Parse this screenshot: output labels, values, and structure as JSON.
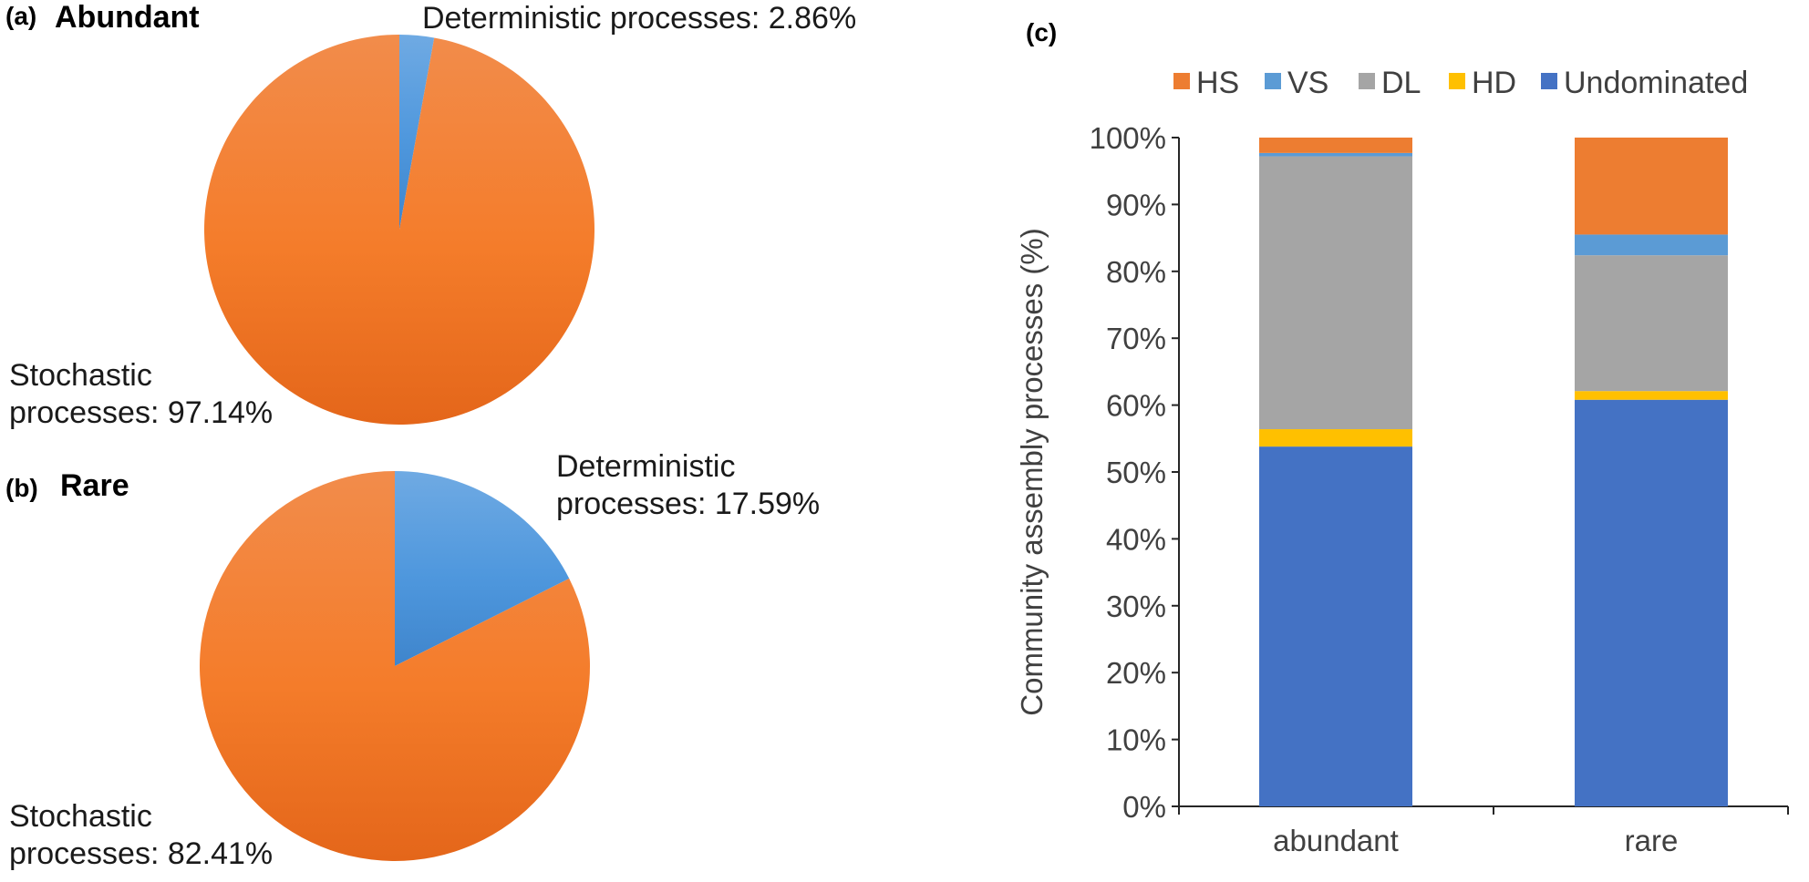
{
  "colors": {
    "stochastic": "#F47C2A",
    "deterministic": "#4E97DD",
    "HS": "#ED7D31",
    "VS": "#5B9BD5",
    "DL": "#A5A5A5",
    "HD": "#FFC000",
    "Undominated": "#4472C4"
  },
  "panel_a": {
    "letter": "(a)",
    "title": "Abundant",
    "deterministic_label": "Deterministic processes: 2.86%",
    "stochastic_label_line1": "Stochastic",
    "stochastic_label_line2": "processes: 97.14%"
  },
  "panel_b": {
    "letter": "(b)",
    "title": "Rare",
    "deterministic_label_line1": "Deterministic",
    "deterministic_label_line2": "processes: 17.59%",
    "stochastic_label_line1": "Stochastic",
    "stochastic_label_line2": "processes: 82.41%"
  },
  "panel_c": {
    "letter": "(c)"
  },
  "chart_data": [
    {
      "type": "pie",
      "title": "Abundant",
      "slices": [
        {
          "name": "Deterministic processes",
          "value": 2.86
        },
        {
          "name": "Stochastic processes",
          "value": 97.14
        }
      ]
    },
    {
      "type": "pie",
      "title": "Rare",
      "slices": [
        {
          "name": "Deterministic processes",
          "value": 17.59
        },
        {
          "name": "Stochastic processes",
          "value": 82.41
        }
      ]
    },
    {
      "type": "bar",
      "stacked": true,
      "categories": [
        "abundant",
        "rare"
      ],
      "ylabel": "Community assembly processes (%)",
      "ylim": [
        0,
        100
      ],
      "yticks": [
        "0%",
        "10%",
        "20%",
        "30%",
        "40%",
        "50%",
        "60%",
        "70%",
        "80%",
        "90%",
        "100%"
      ],
      "legend_position": "top",
      "legend_order": [
        "HS",
        "VS",
        "DL",
        "HD",
        "Undominated"
      ],
      "series": [
        {
          "name": "Undominated",
          "values": [
            53.8,
            60.8
          ]
        },
        {
          "name": "HD",
          "values": [
            2.6,
            1.3
          ]
        },
        {
          "name": "DL",
          "values": [
            40.8,
            20.3
          ]
        },
        {
          "name": "VS",
          "values": [
            0.5,
            3.1
          ]
        },
        {
          "name": "HS",
          "values": [
            2.3,
            14.5
          ]
        }
      ]
    }
  ]
}
